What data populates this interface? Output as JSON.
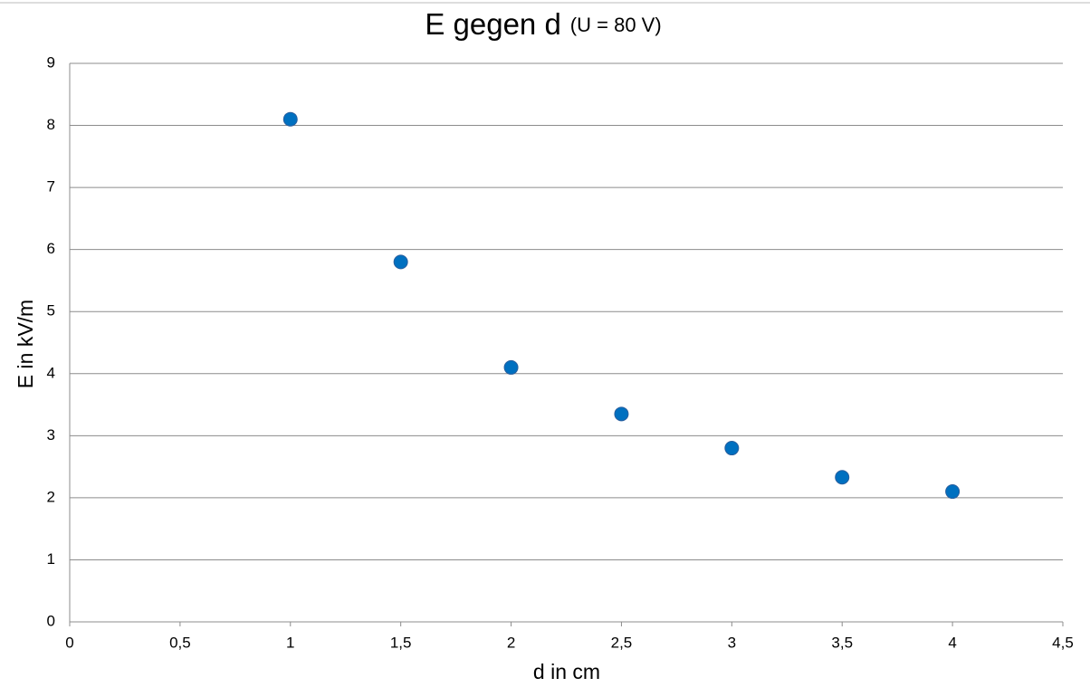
{
  "chart_data": {
    "type": "scatter",
    "title": "E gegen d",
    "subtitle": "(U = 80 V)",
    "x_label": "d in cm",
    "y_label": "E in kV/m",
    "series": [
      {
        "color": "#0070c0",
        "x": [
          1,
          1.5,
          2,
          2.5,
          3,
          3.5,
          4
        ],
        "values": [
          8.1,
          5.8,
          4.1,
          3.35,
          2.8,
          2.33,
          2.1
        ]
      }
    ],
    "xlim": [
      0,
      4.5
    ],
    "xticks": [
      0,
      {
        "value": 0.5,
        "label": "0,5"
      },
      1,
      {
        "value": 1.5,
        "label": "1,5"
      },
      2,
      {
        "value": 2.5,
        "label": "2,5"
      },
      3,
      {
        "value": 3.5,
        "label": "3,5"
      },
      4,
      {
        "value": 4.5,
        "label": "4,5"
      }
    ],
    "ylim": [
      0,
      9
    ],
    "yticks": [
      0,
      1,
      2,
      3,
      4,
      5,
      6,
      7,
      8,
      9
    ],
    "grid": true
  }
}
